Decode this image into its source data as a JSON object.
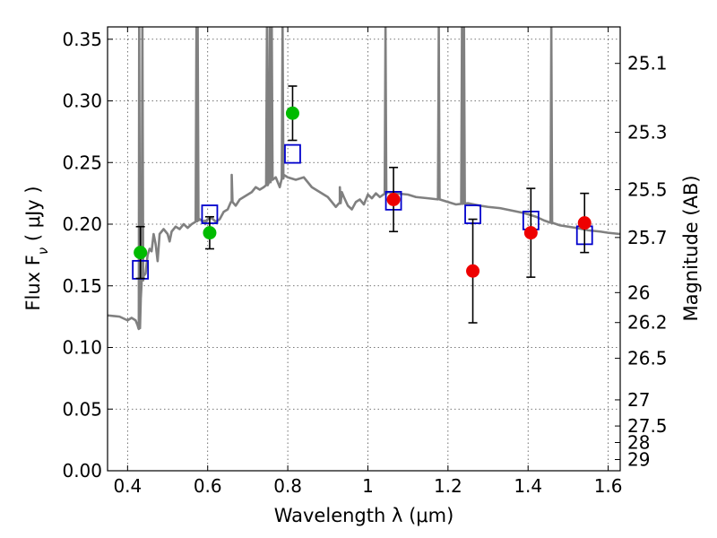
{
  "chart_data": {
    "type": "scatter",
    "xlabel": "Wavelength  λ (μm)",
    "ylabel": "Flux  F",
    "ylabel_sub": "ν",
    "ylabel_unit": " ( μJy )",
    "y2label": "Magnitude (AB)",
    "xlim": [
      0.35,
      1.63
    ],
    "ylim": [
      0.0,
      0.36
    ],
    "xticks": [
      0.4,
      0.6,
      0.8,
      1.0,
      1.2,
      1.4,
      1.6
    ],
    "xtick_labels": [
      "0.4",
      "0.6",
      "0.8",
      "1",
      "1.2",
      "1.4",
      "1.6"
    ],
    "yticks": [
      0.0,
      0.05,
      0.1,
      0.15,
      0.2,
      0.25,
      0.3,
      0.35
    ],
    "ytick_labels": [
      "0.00",
      "0.05",
      "0.10",
      "0.15",
      "0.20",
      "0.25",
      "0.30",
      "0.35"
    ],
    "y2ticks": [
      {
        "flux": 0.3304,
        "label": "25.1"
      },
      {
        "flux": 0.2745,
        "label": "25.3"
      },
      {
        "flux": 0.228,
        "label": "25.5"
      },
      {
        "flux": 0.1892,
        "label": "25.7"
      },
      {
        "flux": 0.1445,
        "label": "26"
      },
      {
        "flux": 0.1202,
        "label": "26.2"
      },
      {
        "flux": 0.0912,
        "label": "26.5"
      },
      {
        "flux": 0.0575,
        "label": "27"
      },
      {
        "flux": 0.0363,
        "label": "27.5"
      },
      {
        "flux": 0.0229,
        "label": "28"
      },
      {
        "flux": 0.0091,
        "label": "29"
      }
    ],
    "grid": true,
    "model_spectrum": {
      "color": "#808080",
      "points": [
        [
          0.35,
          0.126
        ],
        [
          0.38,
          0.125
        ],
        [
          0.4,
          0.122
        ],
        [
          0.41,
          0.124
        ],
        [
          0.42,
          0.122
        ],
        [
          0.425,
          0.118
        ],
        [
          0.428,
          0.115
        ],
        [
          0.431,
          0.117
        ],
        [
          0.433,
          0.14
        ],
        [
          0.435,
          0.152
        ],
        [
          0.44,
          0.158
        ],
        [
          0.445,
          0.16
        ],
        [
          0.45,
          0.175
        ],
        [
          0.455,
          0.18
        ],
        [
          0.46,
          0.178
        ],
        [
          0.465,
          0.192
        ],
        [
          0.47,
          0.184
        ],
        [
          0.475,
          0.17
        ],
        [
          0.48,
          0.192
        ],
        [
          0.49,
          0.196
        ],
        [
          0.5,
          0.192
        ],
        [
          0.505,
          0.186
        ],
        [
          0.51,
          0.194
        ],
        [
          0.52,
          0.198
        ],
        [
          0.53,
          0.196
        ],
        [
          0.54,
          0.2
        ],
        [
          0.55,
          0.197
        ],
        [
          0.56,
          0.2
        ],
        [
          0.57,
          0.202
        ],
        [
          0.58,
          0.204
        ],
        [
          0.59,
          0.202
        ],
        [
          0.6,
          0.204
        ],
        [
          0.61,
          0.205
        ],
        [
          0.62,
          0.202
        ],
        [
          0.63,
          0.204
        ],
        [
          0.64,
          0.21
        ],
        [
          0.65,
          0.212
        ],
        [
          0.66,
          0.218
        ],
        [
          0.67,
          0.215
        ],
        [
          0.68,
          0.22
        ],
        [
          0.69,
          0.222
        ],
        [
          0.7,
          0.224
        ],
        [
          0.71,
          0.226
        ],
        [
          0.72,
          0.23
        ],
        [
          0.73,
          0.228
        ],
        [
          0.74,
          0.23
        ],
        [
          0.75,
          0.232
        ],
        [
          0.76,
          0.236
        ],
        [
          0.77,
          0.238
        ],
        [
          0.78,
          0.23
        ],
        [
          0.79,
          0.24
        ],
        [
          0.8,
          0.238
        ],
        [
          0.82,
          0.236
        ],
        [
          0.84,
          0.238
        ],
        [
          0.86,
          0.23
        ],
        [
          0.88,
          0.226
        ],
        [
          0.9,
          0.222
        ],
        [
          0.91,
          0.218
        ],
        [
          0.92,
          0.214
        ],
        [
          0.93,
          0.217
        ],
        [
          0.935,
          0.226
        ],
        [
          0.94,
          0.222
        ],
        [
          0.95,
          0.215
        ],
        [
          0.96,
          0.212
        ],
        [
          0.97,
          0.218
        ],
        [
          0.98,
          0.22
        ],
        [
          0.99,
          0.216
        ],
        [
          1.0,
          0.224
        ],
        [
          1.01,
          0.221
        ],
        [
          1.02,
          0.225
        ],
        [
          1.03,
          0.222
        ],
        [
          1.05,
          0.226
        ],
        [
          1.07,
          0.225
        ],
        [
          1.1,
          0.224
        ],
        [
          1.12,
          0.222
        ],
        [
          1.15,
          0.221
        ],
        [
          1.18,
          0.22
        ],
        [
          1.2,
          0.218
        ],
        [
          1.22,
          0.216
        ],
        [
          1.25,
          0.217
        ],
        [
          1.28,
          0.215
        ],
        [
          1.3,
          0.214
        ],
        [
          1.33,
          0.213
        ],
        [
          1.36,
          0.211
        ],
        [
          1.39,
          0.209
        ],
        [
          1.42,
          0.206
        ],
        [
          1.44,
          0.203
        ],
        [
          1.46,
          0.201
        ],
        [
          1.48,
          0.199
        ],
        [
          1.5,
          0.198
        ],
        [
          1.52,
          0.197
        ],
        [
          1.55,
          0.195
        ],
        [
          1.58,
          0.194
        ],
        [
          1.6,
          0.193
        ],
        [
          1.63,
          0.192
        ]
      ],
      "emission_lines": [
        {
          "x": 0.429,
          "height": 0.36
        },
        {
          "x": 0.437,
          "height": 0.36
        },
        {
          "x": 0.572,
          "height": 0.36
        },
        {
          "x": 0.575,
          "height": 0.36
        },
        {
          "x": 0.594,
          "height": 0.2
        },
        {
          "x": 0.66,
          "height": 0.24
        },
        {
          "x": 0.748,
          "height": 0.36
        },
        {
          "x": 0.755,
          "height": 0.36
        },
        {
          "x": 0.76,
          "height": 0.36
        },
        {
          "x": 0.787,
          "height": 0.36
        },
        {
          "x": 0.93,
          "height": 0.23
        },
        {
          "x": 1.044,
          "height": 0.36
        },
        {
          "x": 1.177,
          "height": 0.36
        },
        {
          "x": 1.235,
          "height": 0.36
        },
        {
          "x": 1.24,
          "height": 0.36
        },
        {
          "x": 1.458,
          "height": 0.36
        }
      ]
    },
    "model_photometry": {
      "color": "#0000cc",
      "points": [
        {
          "x": 0.432,
          "y": 0.163
        },
        {
          "x": 0.605,
          "y": 0.208
        },
        {
          "x": 0.812,
          "y": 0.257
        },
        {
          "x": 1.064,
          "y": 0.219
        },
        {
          "x": 1.262,
          "y": 0.208
        },
        {
          "x": 1.407,
          "y": 0.203
        },
        {
          "x": 1.541,
          "y": 0.191
        }
      ]
    },
    "observed_optical": {
      "color": "#00bb00",
      "points": [
        {
          "x": 0.432,
          "y": 0.177,
          "err": 0.021
        },
        {
          "x": 0.605,
          "y": 0.193,
          "err": 0.013
        },
        {
          "x": 0.812,
          "y": 0.29,
          "err": 0.022
        }
      ]
    },
    "observed_nir": {
      "color": "#ee0000",
      "points": [
        {
          "x": 1.064,
          "y": 0.22,
          "err": 0.026
        },
        {
          "x": 1.262,
          "y": 0.162,
          "err": 0.042
        },
        {
          "x": 1.407,
          "y": 0.193,
          "err": 0.036
        },
        {
          "x": 1.541,
          "y": 0.201,
          "err": 0.024
        }
      ]
    }
  }
}
